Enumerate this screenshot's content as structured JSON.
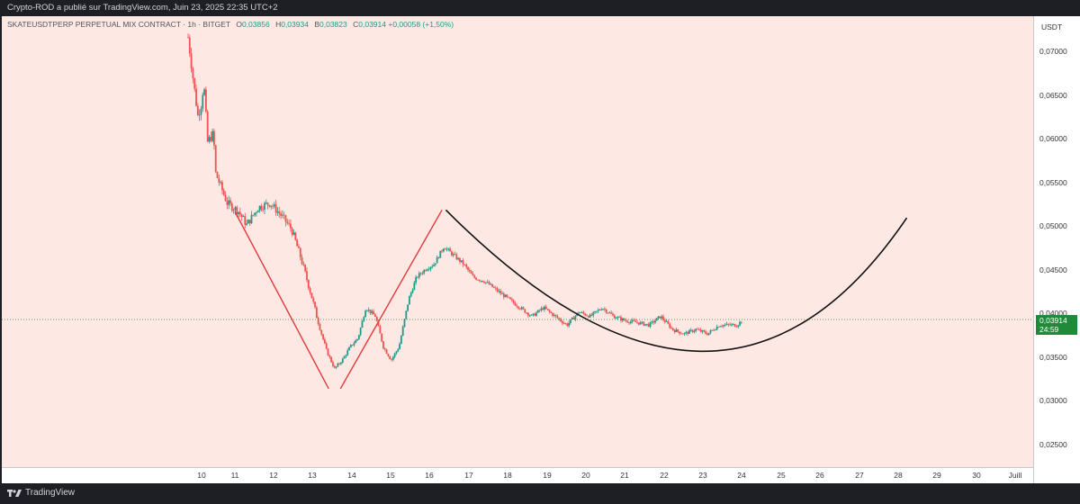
{
  "header": {
    "published_by": "Crypto-ROD a publié sur TradingView.com, Juin 23, 2025 22:35 UTC+2"
  },
  "legend": {
    "symbol": "SKATEUSDTPERP PERPETUAL MIX CONTRACT · 1h · BITGET",
    "o_label": "O",
    "o": "0,03856",
    "h_label": "H",
    "h": "0,03934",
    "b_label": "B",
    "b": "0,03823",
    "c_label": "C",
    "c": "0,03914",
    "change": "+0,00058 (+1,50%)"
  },
  "price_axis": {
    "unit": "USDT",
    "ticks": [
      "0,07000",
      "0,06500",
      "0,06000",
      "0,05500",
      "0,05000",
      "0,04500",
      "0,04000",
      "0,03500",
      "0,03000",
      "0,02500"
    ],
    "last_price": "0,03914",
    "countdown": "24:59"
  },
  "time_axis": {
    "ticks": [
      "10",
      "11",
      "12",
      "13",
      "14",
      "15",
      "16",
      "17",
      "18",
      "19",
      "20",
      "21",
      "22",
      "23",
      "24",
      "25",
      "26",
      "27",
      "28",
      "29",
      "30",
      "Juill"
    ]
  },
  "footer": {
    "brand": "TradingView"
  },
  "colors": {
    "up": "#1e9b8a",
    "down": "#ef5350",
    "background": "#fde8e4",
    "drawing_red": "#e23a3a",
    "drawing_black": "#111111"
  },
  "chart_data": {
    "type": "candlestick",
    "timeframe": "1h",
    "x_unit": "day of June 2025",
    "ylim": [
      0.0225,
      0.0725
    ],
    "close_path": [
      [
        9.7,
        0.0715
      ],
      [
        9.85,
        0.066
      ],
      [
        9.95,
        0.0625
      ],
      [
        10.05,
        0.064
      ],
      [
        10.1,
        0.0665
      ],
      [
        10.2,
        0.0595
      ],
      [
        10.35,
        0.0605
      ],
      [
        10.4,
        0.056
      ],
      [
        10.7,
        0.0525
      ],
      [
        11.0,
        0.0515
      ],
      [
        11.2,
        0.05
      ],
      [
        11.5,
        0.052
      ],
      [
        11.8,
        0.0525
      ],
      [
        12.1,
        0.051
      ],
      [
        12.35,
        0.0495
      ],
      [
        12.6,
        0.046
      ],
      [
        12.85,
        0.042
      ],
      [
        13.05,
        0.0385
      ],
      [
        13.25,
        0.0355
      ],
      [
        13.45,
        0.0335
      ],
      [
        13.65,
        0.0345
      ],
      [
        13.85,
        0.036
      ],
      [
        14.05,
        0.037
      ],
      [
        14.25,
        0.0405
      ],
      [
        14.5,
        0.0395
      ],
      [
        14.7,
        0.036
      ],
      [
        14.9,
        0.0345
      ],
      [
        15.1,
        0.036
      ],
      [
        15.35,
        0.0415
      ],
      [
        15.55,
        0.044
      ],
      [
        15.8,
        0.045
      ],
      [
        16.0,
        0.0455
      ],
      [
        16.25,
        0.0475
      ],
      [
        16.5,
        0.0465
      ],
      [
        16.75,
        0.0455
      ],
      [
        17.0,
        0.044
      ],
      [
        17.3,
        0.0435
      ],
      [
        17.6,
        0.0425
      ],
      [
        17.9,
        0.0415
      ],
      [
        18.2,
        0.0405
      ],
      [
        18.5,
        0.0395
      ],
      [
        18.8,
        0.0405
      ],
      [
        19.1,
        0.0395
      ],
      [
        19.4,
        0.0385
      ],
      [
        19.7,
        0.04
      ],
      [
        20.0,
        0.0395
      ],
      [
        20.3,
        0.0405
      ],
      [
        20.6,
        0.0395
      ],
      [
        20.9,
        0.039
      ],
      [
        21.2,
        0.0388
      ],
      [
        21.5,
        0.0385
      ],
      [
        21.8,
        0.0395
      ],
      [
        22.1,
        0.038
      ],
      [
        22.4,
        0.0375
      ],
      [
        22.7,
        0.038
      ],
      [
        23.0,
        0.0375
      ],
      [
        23.3,
        0.0385
      ],
      [
        23.6,
        0.0385
      ],
      [
        23.75,
        0.0385
      ],
      [
        23.9,
        0.0391
      ]
    ],
    "drawings": [
      {
        "kind": "line",
        "color": "#e23a3a",
        "from": [
          10.9,
          0.0515
        ],
        "to": [
          13.3,
          0.0312
        ]
      },
      {
        "kind": "line",
        "color": "#e23a3a",
        "from": [
          13.6,
          0.0312
        ],
        "to": [
          16.2,
          0.0517
        ]
      },
      {
        "kind": "curve",
        "color": "#111111",
        "from": [
          16.3,
          0.0517
        ],
        "bottom": [
          22.8,
          0.0355
        ],
        "to": [
          28.1,
          0.0508
        ]
      }
    ]
  }
}
